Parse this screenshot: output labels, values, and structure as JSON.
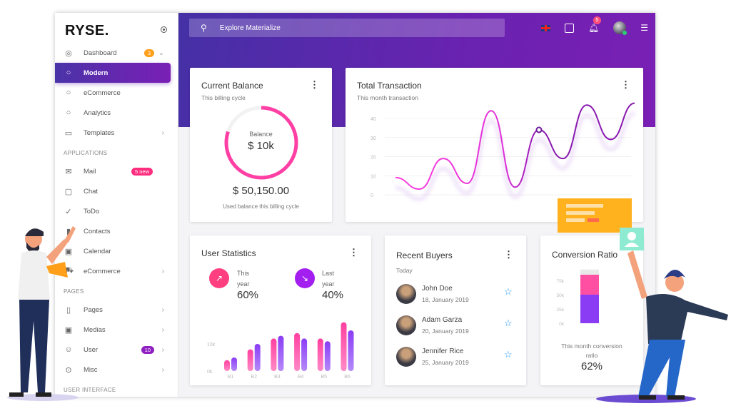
{
  "sidebar": {
    "logo": "RYSE.",
    "items": [
      {
        "label": "Dashboard",
        "icon": "dashboard-icon",
        "badge": "3",
        "chevron": "⌄"
      },
      {
        "label": "Modern",
        "icon": "circle-icon",
        "active": true
      },
      {
        "label": "eCommerce",
        "icon": "circle-icon"
      },
      {
        "label": "Analytics",
        "icon": "circle-icon"
      },
      {
        "label": "Templates",
        "icon": "monitor-icon",
        "chevron": "›"
      }
    ],
    "sections": [
      "APPLICATIONS",
      "PAGES",
      "USER INTERFACE"
    ],
    "apps": [
      {
        "label": "Mail",
        "icon": "mail-icon",
        "badge": "5 new"
      },
      {
        "label": "Chat",
        "icon": "chat-icon"
      },
      {
        "label": "ToDo",
        "icon": "check-icon"
      },
      {
        "label": "Contacts",
        "icon": "contacts-icon"
      },
      {
        "label": "Calendar",
        "icon": "calendar-icon"
      },
      {
        "label": "eCommerce",
        "icon": "cart-icon",
        "chevron": "›"
      }
    ],
    "pages": [
      {
        "label": "Pages",
        "icon": "clipboard-icon",
        "chevron": "›"
      },
      {
        "label": "Medias",
        "icon": "image-icon",
        "chevron": "›"
      },
      {
        "label": "User",
        "icon": "face-icon",
        "badge": "10",
        "chevron": "›"
      },
      {
        "label": "Misc",
        "icon": "misc-icon",
        "chevron": "›"
      }
    ]
  },
  "header": {
    "search_placeholder": "Explore Materialize",
    "notification_count": "5"
  },
  "balance": {
    "title": "Current Balance",
    "subtitle": "This billing cycle",
    "ring_label": "Balance",
    "ring_value": "$ 10k",
    "ring_progress_percent": 80,
    "amount": "$ 50,150.00",
    "caption": "Used balance this billing cycle"
  },
  "transaction": {
    "title": "Total Transaction",
    "subtitle": "This month transaction"
  },
  "stats": {
    "title": "User Statistics",
    "this_label": "This",
    "this_label2": "year",
    "this_value": "60%",
    "last_label": "Last",
    "last_label2": "year",
    "last_value": "40%"
  },
  "buyers": {
    "title": "Recent Buyers",
    "subtitle": "Today",
    "list": [
      {
        "name": "John Doe",
        "date": "18, January 2019"
      },
      {
        "name": "Adam Garza",
        "date": "20, January 2019"
      },
      {
        "name": "Jennifer Rice",
        "date": "25, January 2019"
      }
    ]
  },
  "conversion": {
    "title": "Conversion Ratio",
    "caption": "This month conversion",
    "caption2": "ratio",
    "value": "62%"
  },
  "colors": {
    "accent": "#6a22b0",
    "pink": "#ff4fa3",
    "purple": "#7b3cf5",
    "header_start": "#4530a6"
  },
  "chart_data": [
    {
      "type": "line",
      "title": "Total Transaction",
      "yticks": [
        "0",
        "10",
        "20",
        "30",
        "40"
      ],
      "ylim": [
        0,
        50
      ],
      "grid": true,
      "values": [
        9,
        3,
        19,
        6,
        44,
        4,
        34,
        19,
        47,
        29,
        48
      ],
      "highlight_index": 6
    },
    {
      "type": "bar",
      "title": "User Statistics",
      "categories": [
        "B1",
        "B2",
        "B3",
        "B4",
        "B5",
        "B6"
      ],
      "yticks": [
        "0k",
        "10k"
      ],
      "series": [
        {
          "values": [
            4,
            8,
            12,
            14,
            12,
            18
          ]
        },
        {
          "values": [
            5,
            10,
            13,
            12,
            11,
            15
          ]
        }
      ],
      "unit": "k"
    },
    {
      "type": "bar",
      "title": "Conversion Ratio",
      "yticks": [
        "0k",
        "25k",
        "50k",
        "75k"
      ],
      "stacked": [
        {
          "from": 0,
          "to": 50
        },
        {
          "from": 50,
          "to": 85
        }
      ],
      "ymax": 94
    }
  ]
}
